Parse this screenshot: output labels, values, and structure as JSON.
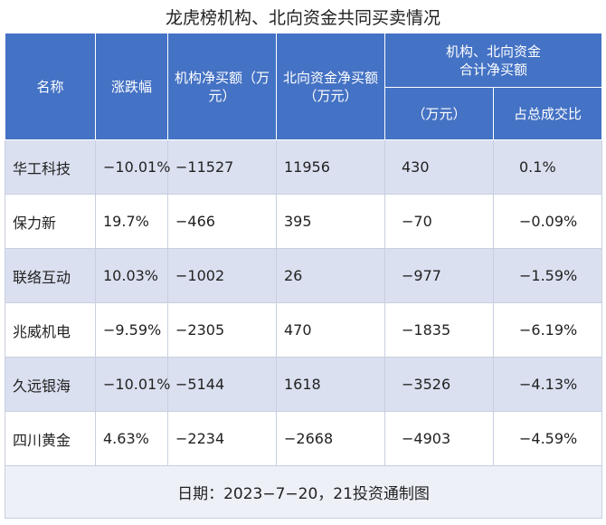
{
  "title": "龙虎榜机构、北向资金共同买卖情况",
  "headers": {
    "name": "名称",
    "change": "涨跌幅",
    "inst": "机构净买额（万元）",
    "north": "北向资金净买额（万元）",
    "combined": "机构、北向资金合计净买额",
    "combined_sub_amount": "（万元）",
    "combined_sub_ratio": "占总成交比"
  },
  "rows": [
    {
      "name": "华工科技",
      "change": "−10.01%",
      "inst": "−11527",
      "north": "11956",
      "total": "430",
      "ratio": "0.1%"
    },
    {
      "name": "保力新",
      "change": "19.7%",
      "inst": "−466",
      "north": "395",
      "total": "−70",
      "ratio": "−0.09%"
    },
    {
      "name": "联络互动",
      "change": "10.03%",
      "inst": "−1002",
      "north": "26",
      "total": "−977",
      "ratio": "−1.59%"
    },
    {
      "name": "兆威机电",
      "change": "−9.59%",
      "inst": "−2305",
      "north": "470",
      "total": "−1835",
      "ratio": "−6.19%"
    },
    {
      "name": "久远银海",
      "change": "−10.01%",
      "inst": "−5144",
      "north": "1618",
      "total": "−3526",
      "ratio": "−4.13%"
    },
    {
      "name": "四川黄金",
      "change": "4.63%",
      "inst": "−2234",
      "north": "−2668",
      "total": "−4903",
      "ratio": "−4.59%"
    }
  ],
  "footer": "日期：2023−7−20，21投资通制图"
}
